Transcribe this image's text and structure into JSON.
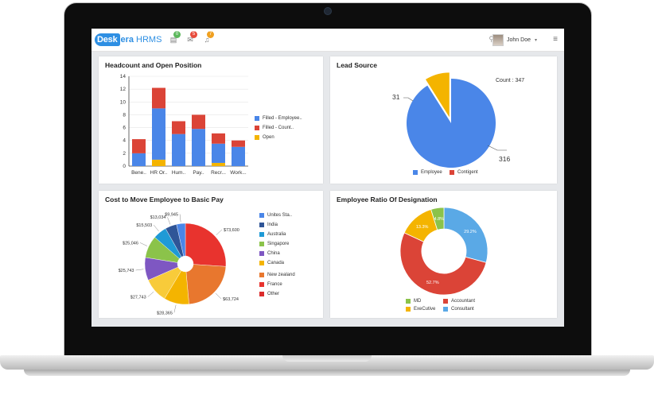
{
  "header": {
    "logo_part1": "Desk",
    "logo_part2": "era",
    "logo_product": "HRMS",
    "icons": [
      {
        "name": "doc-icon",
        "badge": "0",
        "badge_color": "#5cb85c"
      },
      {
        "name": "mail-icon",
        "badge": "5",
        "badge_color": "#e74c3c"
      },
      {
        "name": "bell-icon",
        "badge": "7",
        "badge_color": "#f0a020"
      }
    ],
    "user_name": "John Doe"
  },
  "panels": {
    "headcount": {
      "title": "Headcount and Open Position",
      "legend": [
        {
          "label": "Filled - Employee..",
          "color": "#4a86e8"
        },
        {
          "label": "Filled - Count..",
          "color": "#db4437"
        },
        {
          "label": "Open",
          "color": "#f4b400"
        }
      ]
    },
    "lead_source": {
      "title": "Lead Source",
      "count_label": "Count : 347",
      "legend": [
        {
          "label": "Employee",
          "color": "#4a86e8"
        },
        {
          "label": "Contigent",
          "color": "#db4437"
        }
      ]
    },
    "cost": {
      "title": "Cost to Move Employee to Basic Pay",
      "legend": [
        {
          "label": "Unites Sta..",
          "color": "#4a86e8"
        },
        {
          "label": "India",
          "color": "#2f5597"
        },
        {
          "label": "Australia",
          "color": "#1f9ad6"
        },
        {
          "label": "Singapore",
          "color": "#8bc34a"
        },
        {
          "label": "China",
          "color": "#7e57c2"
        },
        {
          "label": "Canada",
          "color": "#f4b400"
        },
        {
          "label": "New zealand",
          "color": "#e8772e"
        },
        {
          "label": "France",
          "color": "#e8332e"
        },
        {
          "label": "Other",
          "color": "#db2b2b"
        }
      ]
    },
    "ratio": {
      "title": "Employee Ratio Of Designation",
      "legend": [
        {
          "label": "MD",
          "color": "#8bc34a"
        },
        {
          "label": "Accountant",
          "color": "#db4437"
        },
        {
          "label": "ExeCutive",
          "color": "#f4b400"
        },
        {
          "label": "Consultant",
          "color": "#5aa9e6"
        }
      ]
    }
  },
  "chart_data": [
    {
      "type": "bar",
      "title": "Headcount and Open Position",
      "categories": [
        "Bene..",
        "HR Or..",
        "Hum..",
        "Pay..",
        "Recr...",
        "Work..."
      ],
      "ylim": [
        0,
        14
      ],
      "yticks": [
        0,
        2,
        4,
        6,
        8,
        10,
        12,
        14
      ],
      "stacked": true,
      "series": [
        {
          "name": "Filled - Employee..",
          "color": "#4a86e8",
          "values": [
            2,
            8,
            5,
            5.8,
            3,
            3
          ]
        },
        {
          "name": "Filled - Count..",
          "color": "#db4437",
          "values": [
            2.2,
            3.2,
            2,
            2.2,
            1.6,
            1
          ]
        },
        {
          "name": "Open",
          "color": "#f4b400",
          "values": [
            0,
            1,
            0,
            0,
            0.5,
            0
          ]
        }
      ],
      "legend": "right"
    },
    {
      "type": "pie",
      "title": "Lead Source",
      "slices": [
        {
          "label": "Employee",
          "value": 316,
          "color": "#4a86e8"
        },
        {
          "label": "Contigent",
          "value": 31,
          "color": "#f4b400"
        }
      ],
      "total_label": "Count : 347",
      "legend": "bottom"
    },
    {
      "type": "pie",
      "title": "Cost to Move Employee to Basic Pay",
      "donut": true,
      "slices": [
        {
          "label": "Unites Sta..",
          "value": 73600,
          "display": "$73,600",
          "color": "#e8332e"
        },
        {
          "label": "New zealand",
          "value": 63724,
          "display": "$63,724",
          "color": "#e8772e"
        },
        {
          "label": "Canada",
          "value": 28365,
          "display": "$28,365",
          "color": "#f4b400"
        },
        {
          "label": "Canada",
          "value": 27743,
          "display": "$27,743",
          "color": "#f8cb3a"
        },
        {
          "label": "China",
          "value": 25743,
          "display": "$25,743",
          "color": "#7e57c2"
        },
        {
          "label": "Singapore",
          "value": 25046,
          "display": "$25,046",
          "color": "#8bc34a"
        },
        {
          "label": "Australia",
          "value": 15503,
          "display": "$15,503",
          "color": "#1f9ad6"
        },
        {
          "label": "India",
          "value": 13034,
          "display": "$13,034",
          "color": "#2f5597"
        },
        {
          "label": "Other",
          "value": 9945,
          "display": "$9,945",
          "color": "#4a86e8"
        }
      ],
      "legend": "right"
    },
    {
      "type": "pie",
      "title": "Employee Ratio Of Designation",
      "donut": true,
      "slices": [
        {
          "label": "Consultant",
          "value": 29.2,
          "display": "29.2%",
          "color": "#5aa9e6"
        },
        {
          "label": "Accountant",
          "value": 52.7,
          "display": "52.7%",
          "color": "#db4437"
        },
        {
          "label": "ExeCutive",
          "value": 13.3,
          "display": "13.3%",
          "color": "#f4b400"
        },
        {
          "label": "MD",
          "value": 4.8,
          "display": "4.8%",
          "color": "#8bc34a"
        }
      ],
      "legend": "bottom"
    }
  ]
}
